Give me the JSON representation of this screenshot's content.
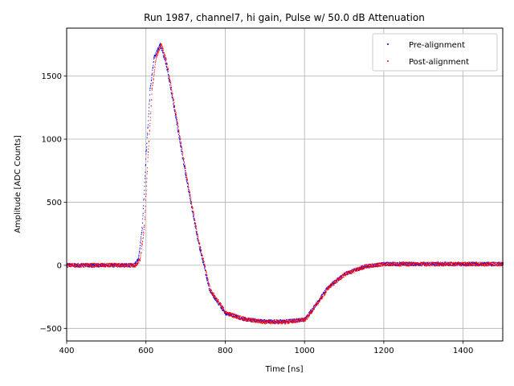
{
  "chart_data": {
    "type": "scatter",
    "title": "Run 1987, channel7, hi gain, Pulse w/ 50.0 dB Attenuation",
    "xlabel": "Time [ns]",
    "ylabel": "Amplitude [ADC Counts]",
    "xlim": [
      400,
      1500
    ],
    "ylim": [
      -600,
      1880
    ],
    "xticks": [
      400,
      600,
      800,
      1000,
      1200,
      1400
    ],
    "yticks": [
      -500,
      0,
      500,
      1000,
      1500
    ],
    "grid": true,
    "legend_position": "top-right",
    "series": [
      {
        "name": "Pre-alignment",
        "color": "#0000ff",
        "noise": 14,
        "x": [
          400,
          500,
          570,
          580,
          590,
          600,
          610,
          620,
          635,
          650,
          670,
          700,
          730,
          760,
          800,
          850,
          900,
          950,
          1000,
          1030,
          1060,
          1100,
          1150,
          1200,
          1300,
          1400,
          1500
        ],
        "y": [
          0,
          0,
          0,
          50,
          300,
          900,
          1400,
          1650,
          1750,
          1600,
          1250,
          700,
          200,
          -200,
          -380,
          -430,
          -445,
          -445,
          -430,
          -300,
          -170,
          -70,
          -10,
          10,
          10,
          10,
          10
        ]
      },
      {
        "name": "Post-alignment",
        "color": "#ff0000",
        "noise": 16,
        "x": [
          400,
          500,
          575,
          585,
          595,
          605,
          615,
          625,
          638,
          652,
          672,
          702,
          732,
          762,
          802,
          852,
          902,
          952,
          1002,
          1032,
          1062,
          1102,
          1152,
          1202,
          1302,
          1402,
          1500
        ],
        "y": [
          0,
          0,
          0,
          50,
          300,
          900,
          1400,
          1650,
          1755,
          1600,
          1250,
          700,
          200,
          -200,
          -380,
          -430,
          -450,
          -450,
          -430,
          -300,
          -170,
          -70,
          -10,
          10,
          10,
          10,
          10
        ]
      }
    ]
  }
}
